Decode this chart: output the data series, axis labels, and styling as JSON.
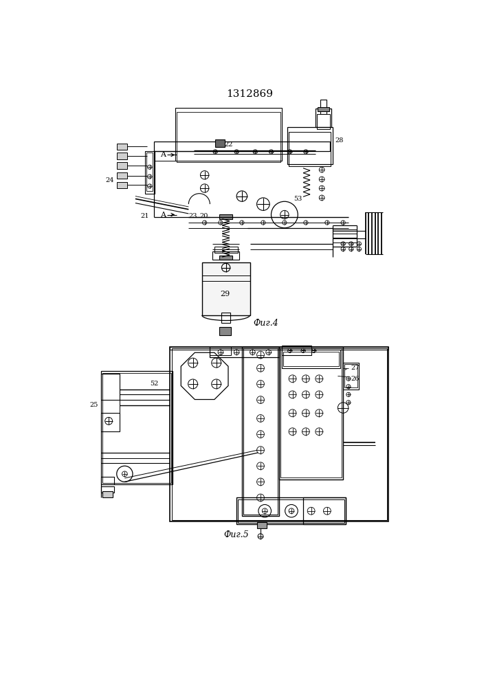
{
  "title": "1312869",
  "fig4_label": "Фиг.4",
  "fig5_label": "Фиг.5",
  "bg": "#ffffff"
}
